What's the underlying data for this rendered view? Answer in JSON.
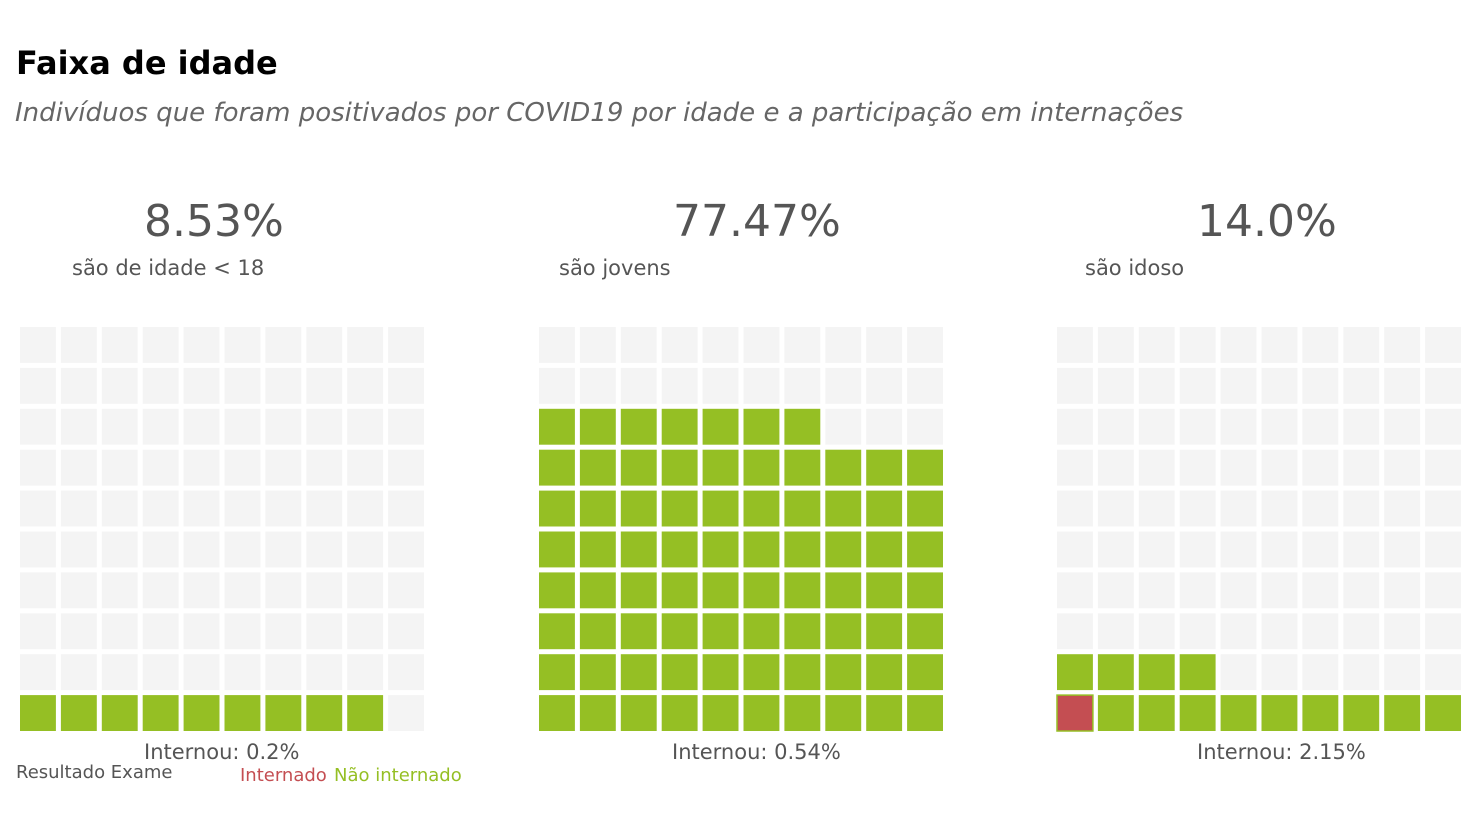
{
  "header": {
    "title": "Faixa de idade",
    "subtitle": "Indivíduos que foram positivados por COVID19 por idade e a participação em internações"
  },
  "colors": {
    "empty": "#f4f4f4",
    "internado": "#c44e52",
    "nao_internado": "#95bf24",
    "text": "#555555"
  },
  "chart_data": [
    {
      "type": "waffle",
      "headline": "8.53%",
      "caption": "são de idade < 18",
      "footer": "Internou: 0.2%",
      "grid": [
        10,
        10
      ],
      "cells": {
        "internado": 0,
        "nao_internado": 9,
        "vazio": 91
      }
    },
    {
      "type": "waffle",
      "headline": "77.47%",
      "caption": "são jovens",
      "footer": "Internou: 0.54%",
      "grid": [
        10,
        10
      ],
      "cells": {
        "internado": 0,
        "nao_internado": 77,
        "vazio": 23
      }
    },
    {
      "type": "waffle",
      "headline": "14.0%",
      "caption": "são idoso",
      "footer": "Internou: 2.15%",
      "grid": [
        10,
        10
      ],
      "cells": {
        "internado": 1,
        "nao_internado": 13,
        "vazio": 86
      }
    }
  ],
  "legend": {
    "title": "Resultado Exame",
    "items": [
      {
        "label": "Internado",
        "color": "#c44e52"
      },
      {
        "label": "Não internado",
        "color": "#95bf24"
      }
    ]
  }
}
